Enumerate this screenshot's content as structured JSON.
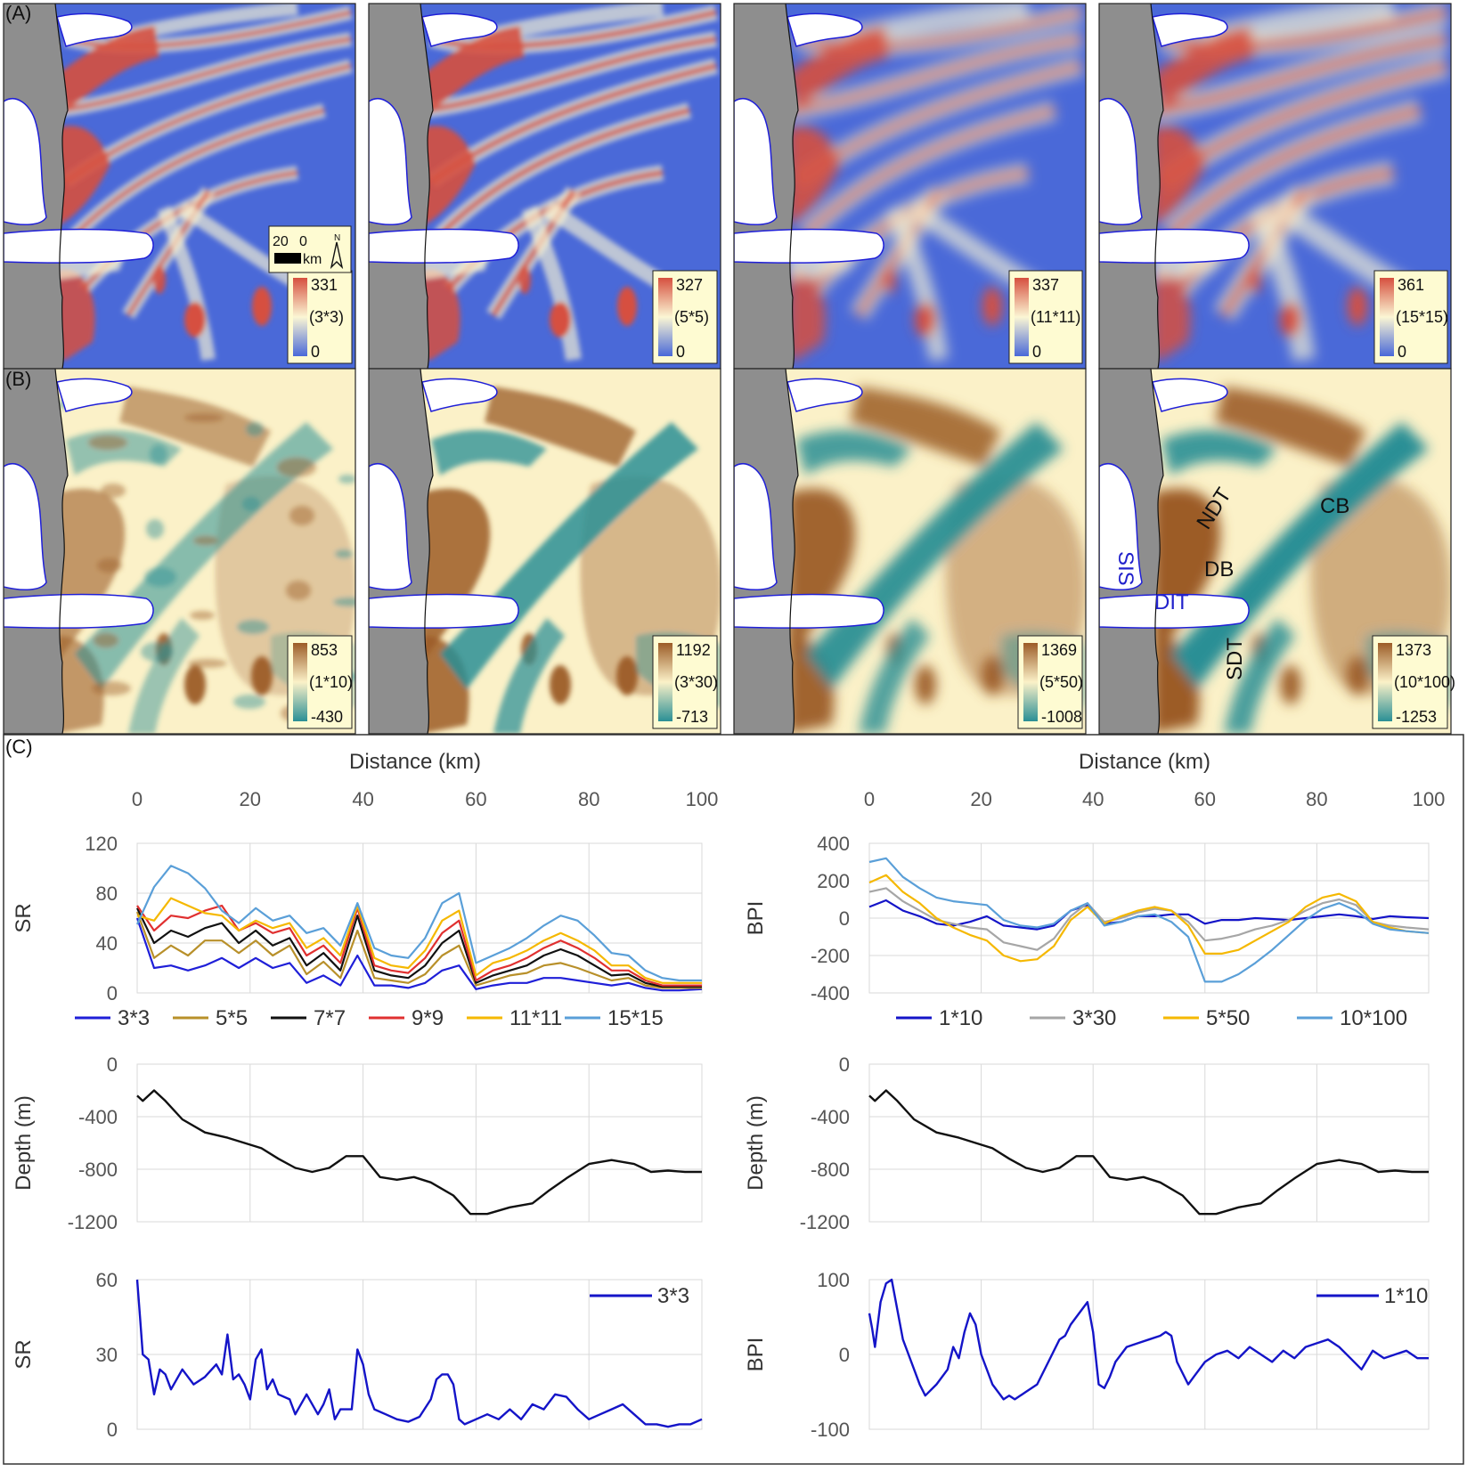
{
  "panel_labels": {
    "a": "(A)",
    "b": "(B)",
    "c": "(C)"
  },
  "colors": {
    "land": "#8e8e8e",
    "ice": "#ffffff",
    "coast": "#1f1fd8",
    "legend_bg": "#fefbd2",
    "sr_high": "#d6503f",
    "sr_mid": "#fbf6d4",
    "sr_low": "#4a69d8",
    "bpi_high": "#9c5c27",
    "bpi_mid": "#fbf1c8",
    "bpi_low": "#2a8f95"
  },
  "scalebar": {
    "left": "20",
    "right": "0",
    "unit": "km",
    "north": "N"
  },
  "sr_maps": [
    {
      "window": "(3*3)",
      "max": "331",
      "min": "0"
    },
    {
      "window": "(5*5)",
      "max": "327",
      "min": "0"
    },
    {
      "window": "(11*11)",
      "max": "337",
      "min": "0"
    },
    {
      "window": "(15*15)",
      "max": "361",
      "min": "0"
    }
  ],
  "bpi_maps": [
    {
      "window": "(1*10)",
      "max": "853",
      "min": "-430"
    },
    {
      "window": "(3*30)",
      "max": "1192",
      "min": "-713"
    },
    {
      "window": "(5*50)",
      "max": "1369",
      "min": "-1008"
    },
    {
      "window": "(10*100)",
      "max": "1373",
      "min": "-1253"
    }
  ],
  "feature_labels": [
    {
      "text": "SIS",
      "color": "#2222cc"
    },
    {
      "text": "NDT",
      "color": "#111111"
    },
    {
      "text": "CB",
      "color": "#111111"
    },
    {
      "text": "DB",
      "color": "#111111"
    },
    {
      "text": "DIT",
      "color": "#2222cc"
    },
    {
      "text": "SDT",
      "color": "#111111"
    }
  ],
  "chart_data": [
    {
      "id": "sr_profiles",
      "type": "line",
      "title": "",
      "xlabel": "Distance (km)",
      "ylabel": "SR",
      "xlim": [
        0,
        100
      ],
      "ylim": [
        0,
        120
      ],
      "xticks": [
        "0",
        "20",
        "40",
        "60",
        "80",
        "100"
      ],
      "yticks": [
        "0",
        "40",
        "80",
        "120"
      ],
      "legend_position": "bottom",
      "x": [
        0,
        3,
        6,
        9,
        12,
        15,
        18,
        21,
        24,
        27,
        30,
        33,
        36,
        39,
        42,
        45,
        48,
        51,
        54,
        57,
        60,
        63,
        66,
        69,
        72,
        75,
        78,
        81,
        84,
        87,
        90,
        93,
        96,
        100
      ],
      "series": [
        {
          "name": "3*3",
          "color": "#1f1fd8",
          "values": [
            60,
            20,
            22,
            18,
            22,
            28,
            20,
            28,
            20,
            24,
            8,
            14,
            6,
            30,
            6,
            6,
            4,
            8,
            18,
            22,
            3,
            6,
            8,
            8,
            12,
            12,
            10,
            8,
            6,
            8,
            4,
            2,
            2,
            3
          ]
        },
        {
          "name": "5*5",
          "color": "#b8902a",
          "values": [
            65,
            28,
            38,
            30,
            42,
            42,
            32,
            42,
            30,
            38,
            15,
            25,
            12,
            50,
            12,
            10,
            8,
            15,
            30,
            38,
            6,
            10,
            14,
            16,
            22,
            24,
            20,
            15,
            10,
            12,
            6,
            4,
            4,
            4
          ]
        },
        {
          "name": "7*7",
          "color": "#111111",
          "values": [
            68,
            40,
            50,
            45,
            52,
            56,
            40,
            50,
            38,
            44,
            22,
            32,
            18,
            62,
            18,
            14,
            12,
            22,
            40,
            50,
            8,
            14,
            18,
            22,
            30,
            35,
            30,
            22,
            14,
            15,
            8,
            5,
            5,
            5
          ]
        },
        {
          "name": "9*9",
          "color": "#e03030",
          "values": [
            70,
            50,
            62,
            60,
            66,
            70,
            50,
            56,
            48,
            52,
            30,
            38,
            24,
            68,
            22,
            18,
            16,
            28,
            48,
            58,
            10,
            18,
            22,
            28,
            36,
            42,
            36,
            28,
            18,
            18,
            10,
            6,
            6,
            6
          ]
        },
        {
          "name": "11*11",
          "color": "#f5b800",
          "values": [
            62,
            58,
            76,
            70,
            64,
            62,
            50,
            58,
            52,
            56,
            36,
            44,
            30,
            70,
            28,
            22,
            20,
            34,
            58,
            66,
            14,
            24,
            28,
            34,
            42,
            48,
            42,
            34,
            22,
            22,
            12,
            8,
            8,
            8
          ]
        },
        {
          "name": "15*15",
          "color": "#5a9fd8",
          "values": [
            55,
            85,
            102,
            96,
            84,
            66,
            56,
            68,
            58,
            62,
            48,
            52,
            38,
            72,
            36,
            30,
            28,
            44,
            72,
            80,
            24,
            30,
            36,
            44,
            54,
            62,
            58,
            46,
            32,
            30,
            18,
            12,
            10,
            10
          ]
        }
      ]
    },
    {
      "id": "bpi_profiles",
      "type": "line",
      "title": "",
      "xlabel": "Distance (km)",
      "ylabel": "BPI",
      "xlim": [
        0,
        100
      ],
      "ylim": [
        -400,
        400
      ],
      "xticks": [
        "0",
        "20",
        "40",
        "60",
        "80",
        "100"
      ],
      "yticks": [
        "-400",
        "-200",
        "0",
        "200",
        "400"
      ],
      "legend_position": "bottom",
      "x": [
        0,
        3,
        6,
        9,
        12,
        15,
        18,
        21,
        24,
        27,
        30,
        33,
        36,
        39,
        42,
        45,
        48,
        51,
        54,
        57,
        60,
        63,
        66,
        69,
        72,
        75,
        78,
        81,
        84,
        87,
        90,
        93,
        96,
        100
      ],
      "series": [
        {
          "name": "1*10",
          "color": "#1414c8",
          "values": [
            60,
            95,
            40,
            10,
            -30,
            -40,
            -20,
            10,
            -40,
            -50,
            -60,
            -40,
            40,
            70,
            -30,
            -20,
            10,
            10,
            20,
            20,
            -30,
            -10,
            -10,
            0,
            -5,
            -10,
            0,
            10,
            20,
            10,
            -5,
            10,
            5,
            0
          ]
        },
        {
          "name": "3*30",
          "color": "#a6a6a6",
          "values": [
            140,
            160,
            90,
            40,
            -10,
            -30,
            -50,
            -60,
            -130,
            -150,
            -170,
            -110,
            10,
            80,
            -20,
            0,
            30,
            50,
            40,
            -20,
            -120,
            -110,
            -90,
            -60,
            -40,
            -10,
            40,
            80,
            100,
            70,
            -20,
            -40,
            -50,
            -60
          ]
        },
        {
          "name": "5*50",
          "color": "#f5b800",
          "values": [
            190,
            230,
            140,
            80,
            0,
            -50,
            -90,
            -120,
            -200,
            -230,
            -220,
            -150,
            -10,
            60,
            -30,
            10,
            40,
            60,
            40,
            -40,
            -190,
            -190,
            -170,
            -120,
            -70,
            -20,
            60,
            110,
            130,
            90,
            -20,
            -50,
            -70,
            -80
          ]
        },
        {
          "name": "10*100",
          "color": "#5a9fd8",
          "values": [
            300,
            320,
            220,
            160,
            110,
            90,
            80,
            70,
            -10,
            -40,
            -50,
            -30,
            40,
            80,
            -40,
            -20,
            10,
            20,
            -20,
            -100,
            -340,
            -340,
            -300,
            -240,
            -170,
            -90,
            -10,
            50,
            80,
            40,
            -30,
            -60,
            -70,
            -80
          ]
        }
      ]
    },
    {
      "id": "depth_left",
      "type": "line",
      "title": "",
      "xlabel": "",
      "ylabel": "Depth (m)",
      "xlim": [
        0,
        100
      ],
      "ylim": [
        -1200,
        0
      ],
      "yticks": [
        "0",
        "-400",
        "-800",
        "-1200"
      ],
      "x": [
        0,
        1,
        3,
        5,
        8,
        12,
        16,
        19,
        22,
        25,
        28,
        31,
        34,
        37,
        40,
        43,
        46,
        49,
        52,
        56,
        59,
        62,
        66,
        70,
        73,
        76,
        80,
        84,
        88,
        91,
        94,
        97,
        100
      ],
      "series": [
        {
          "name": "Depth",
          "color": "#111111",
          "values": [
            -240,
            -280,
            -200,
            -280,
            -420,
            -520,
            -560,
            -600,
            -640,
            -720,
            -790,
            -820,
            -790,
            -700,
            -700,
            -860,
            -880,
            -860,
            -900,
            -1000,
            -1140,
            -1140,
            -1090,
            -1060,
            -960,
            -870,
            -760,
            -730,
            -760,
            -820,
            -810,
            -820,
            -820
          ]
        }
      ]
    },
    {
      "id": "depth_right",
      "type": "line",
      "title": "",
      "xlabel": "",
      "ylabel": "Depth (m)",
      "xlim": [
        0,
        100
      ],
      "ylim": [
        -1200,
        0
      ],
      "yticks": [
        "0",
        "-400",
        "-800",
        "-1200"
      ],
      "x": [
        0,
        1,
        3,
        5,
        8,
        12,
        16,
        19,
        22,
        25,
        28,
        31,
        34,
        37,
        40,
        43,
        46,
        49,
        52,
        56,
        59,
        62,
        66,
        70,
        73,
        76,
        80,
        84,
        88,
        91,
        94,
        97,
        100
      ],
      "series": [
        {
          "name": "Depth",
          "color": "#111111",
          "values": [
            -240,
            -280,
            -200,
            -280,
            -420,
            -520,
            -560,
            -600,
            -640,
            -720,
            -790,
            -820,
            -790,
            -700,
            -700,
            -860,
            -880,
            -860,
            -900,
            -1000,
            -1140,
            -1140,
            -1090,
            -1060,
            -960,
            -870,
            -760,
            -730,
            -760,
            -820,
            -810,
            -820,
            -820
          ]
        }
      ]
    },
    {
      "id": "sr_3x3",
      "type": "line",
      "title": "",
      "xlabel": "",
      "ylabel": "SR",
      "xlim": [
        0,
        100
      ],
      "ylim": [
        0,
        60
      ],
      "yticks": [
        "0",
        "30",
        "60"
      ],
      "legend_position": "top-right",
      "x": [
        0,
        0.5,
        1,
        2,
        3,
        4,
        5,
        6,
        8,
        10,
        12,
        14,
        15,
        16,
        17,
        18,
        19,
        20,
        21,
        22,
        23,
        24,
        25,
        27,
        28,
        30,
        32,
        33,
        34,
        35,
        36,
        38,
        39,
        40,
        41,
        42,
        44,
        46,
        48,
        50,
        52,
        53,
        54,
        55,
        56,
        57,
        58,
        60,
        62,
        64,
        66,
        68,
        70,
        72,
        74,
        76,
        78,
        80,
        82,
        84,
        86,
        88,
        90,
        92,
        94,
        96,
        98,
        100
      ],
      "series": [
        {
          "name": "3*3",
          "color": "#1414c8",
          "values": [
            60,
            45,
            30,
            28,
            14,
            24,
            22,
            16,
            24,
            18,
            21,
            26,
            22,
            38,
            20,
            22,
            18,
            12,
            28,
            32,
            16,
            20,
            14,
            12,
            6,
            14,
            6,
            10,
            16,
            4,
            8,
            8,
            32,
            26,
            14,
            8,
            6,
            4,
            3,
            5,
            12,
            20,
            22,
            22,
            18,
            4,
            2,
            4,
            6,
            4,
            8,
            4,
            10,
            8,
            14,
            13,
            8,
            4,
            6,
            8,
            10,
            6,
            2,
            2,
            1,
            2,
            2,
            4
          ]
        }
      ]
    },
    {
      "id": "bpi_1x10",
      "type": "line",
      "title": "",
      "xlabel": "",
      "ylabel": "BPI",
      "xlim": [
        0,
        100
      ],
      "ylim": [
        -100,
        100
      ],
      "yticks": [
        "-100",
        "0",
        "100"
      ],
      "legend_position": "top-right",
      "x": [
        0,
        0.5,
        1,
        2,
        3,
        4,
        5,
        6,
        7,
        9,
        10,
        12,
        14,
        15,
        16,
        17,
        18,
        19,
        20,
        22,
        24,
        25,
        26,
        28,
        30,
        32,
        34,
        35,
        36,
        38,
        39,
        40,
        41,
        42,
        43,
        44,
        46,
        48,
        50,
        52,
        53,
        54,
        55,
        56,
        57,
        58,
        60,
        62,
        64,
        66,
        68,
        70,
        72,
        74,
        76,
        78,
        80,
        82,
        84,
        86,
        88,
        90,
        92,
        94,
        96,
        98,
        100
      ],
      "series": [
        {
          "name": "1*10",
          "color": "#1414c8",
          "values": [
            55,
            35,
            10,
            70,
            95,
            100,
            60,
            20,
            0,
            -40,
            -55,
            -40,
            -20,
            10,
            -5,
            30,
            55,
            40,
            0,
            -40,
            -60,
            -55,
            -60,
            -50,
            -40,
            -10,
            20,
            25,
            40,
            60,
            70,
            30,
            -40,
            -45,
            -30,
            -10,
            10,
            15,
            20,
            25,
            30,
            25,
            -10,
            -25,
            -40,
            -30,
            -10,
            0,
            5,
            -5,
            10,
            0,
            -10,
            5,
            -5,
            10,
            15,
            20,
            10,
            -5,
            -20,
            5,
            -5,
            0,
            5,
            -5,
            -5
          ]
        }
      ]
    }
  ]
}
